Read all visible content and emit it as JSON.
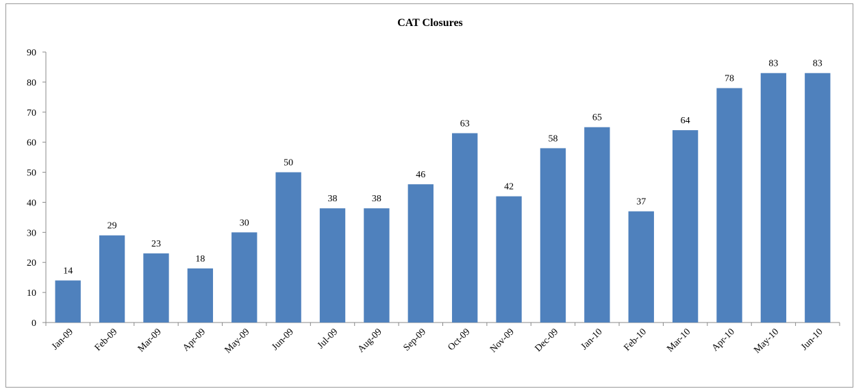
{
  "chart_data": {
    "type": "bar",
    "title": "CAT Closures",
    "categories": [
      "Jan-09",
      "Feb-09",
      "Mar-09",
      "Apr-09",
      "May-09",
      "Jun-09",
      "Jul-09",
      "Aug-09",
      "Sep-09",
      "Oct-09",
      "Nov-09",
      "Dec-09",
      "Jan-10",
      "Feb-10",
      "Mar-10",
      "Apr-10",
      "May-10",
      "Jun-10"
    ],
    "values": [
      14,
      29,
      23,
      18,
      30,
      50,
      38,
      38,
      46,
      63,
      42,
      58,
      65,
      37,
      64,
      78,
      83,
      83
    ],
    "color": "#4f81bd",
    "ylim": [
      0,
      90
    ],
    "yticks": [
      0,
      10,
      20,
      30,
      40,
      50,
      60,
      70,
      80,
      90
    ],
    "grid": false
  }
}
